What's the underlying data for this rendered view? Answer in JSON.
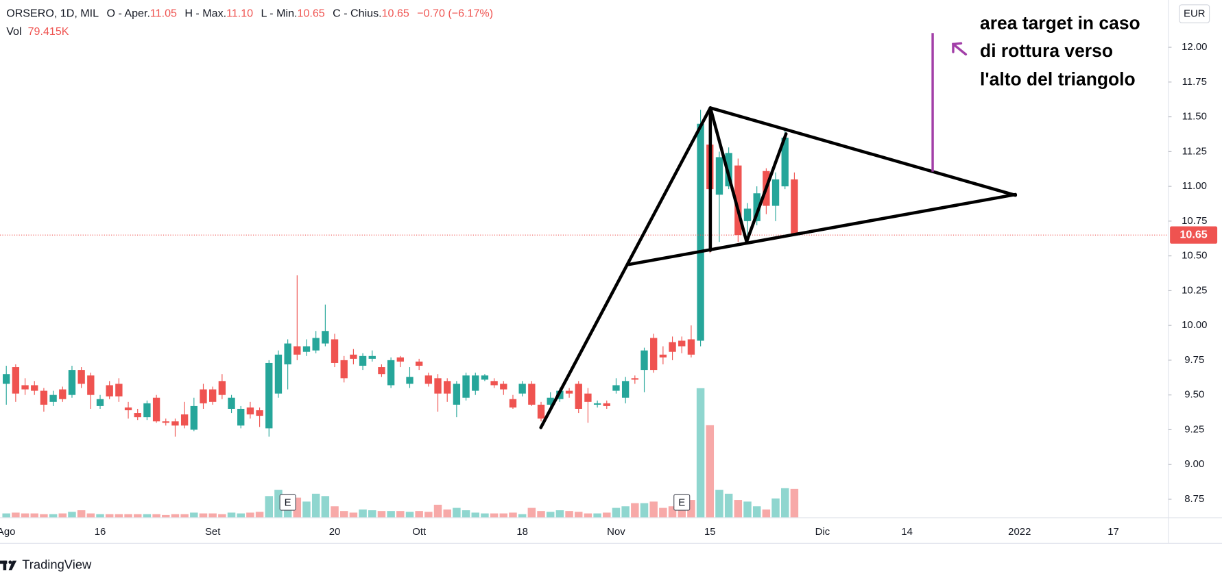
{
  "chart_data": {
    "type": "candlestick",
    "header": {
      "symbol": "ORSERO, 1D, MIL",
      "open_label": "O - Aper.",
      "open": "11.05",
      "high_label": "H - Max.",
      "high": "11.10",
      "low_label": "L - Min.",
      "low": "10.65",
      "close_label": "C - Chius.",
      "close": "10.65",
      "change": "−0.70 (−6.17%)",
      "volume_label": "Vol",
      "volume": "79.415K"
    },
    "currency": "EUR",
    "annotation": [
      "area target in caso",
      "di rottura verso",
      "l'alto del triangolo"
    ],
    "earnings_label": "E",
    "brand": "TradingView",
    "up_color": "#26a69a",
    "down_color": "#ef5350",
    "volume_up_color": "#8fd6cf",
    "volume_down_color": "#f7a9a8",
    "ylim": [
      8.62,
      12.34
    ],
    "yticks": [
      8.75,
      {
        "value": 9,
        "label": "9.00"
      },
      9.25,
      {
        "value": 9.5,
        "label": "9.50"
      },
      9.75,
      {
        "value": 10,
        "label": "10.00"
      },
      10.25,
      {
        "value": 10.5,
        "label": "10.50"
      },
      10.75,
      {
        "value": 11,
        "label": "11.00"
      },
      11.25,
      {
        "value": 11.5,
        "label": "11.50"
      },
      11.75,
      {
        "value": 12,
        "label": "12.00"
      }
    ],
    "last_price": {
      "value": 10.65,
      "label": "10.65"
    },
    "categories": [
      "Ago",
      null,
      null,
      null,
      null,
      null,
      null,
      null,
      null,
      null,
      "16",
      null,
      null,
      null,
      null,
      null,
      null,
      null,
      null,
      null,
      null,
      null,
      "Set",
      null,
      null,
      null,
      null,
      null,
      null,
      null,
      null,
      null,
      null,
      null,
      null,
      "20",
      null,
      null,
      null,
      null,
      null,
      null,
      null,
      null,
      "Ott",
      null,
      null,
      null,
      null,
      null,
      null,
      null,
      null,
      null,
      null,
      "18",
      null,
      null,
      null,
      null,
      null,
      null,
      null,
      null,
      null,
      "Nov",
      null,
      null,
      null,
      null,
      null,
      null,
      null,
      null,
      null,
      "15",
      null,
      null,
      null,
      null,
      null,
      null,
      null,
      null,
      null,
      null,
      null,
      "Dic",
      null,
      null,
      null,
      null,
      null,
      null,
      null,
      null,
      "14",
      null,
      null,
      null,
      null,
      null,
      null,
      null,
      null,
      null,
      null,
      null,
      "2022",
      null,
      null,
      null,
      null,
      null,
      null,
      null,
      null,
      null,
      "17"
    ],
    "open": [
      9.58,
      9.7,
      9.57,
      9.57,
      9.53,
      9.45,
      9.54,
      9.5,
      9.68,
      9.64,
      9.42,
      9.57,
      9.58,
      9.41,
      9.37,
      9.34,
      9.48,
      9.31,
      9.31,
      9.36,
      9.25,
      9.54,
      9.54,
      9.6,
      9.4,
      9.28,
      9.41,
      9.39,
      9.26,
      9.51,
      9.72,
      9.85,
      9.81,
      9.82,
      9.87,
      9.9,
      9.75,
      9.79,
      9.71,
      9.76,
      9.7,
      9.57,
      9.77,
      9.58,
      9.74,
      9.64,
      9.62,
      9.6,
      9.43,
      9.48,
      9.53,
      9.61,
      9.6,
      9.58,
      9.47,
      9.51,
      9.58,
      9.43,
      9.43,
      9.47,
      9.53,
      9.58,
      9.51,
      9.43,
      9.44,
      9.53,
      9.48,
      9.62,
      9.68,
      9.91,
      9.79,
      9.88,
      9.89,
      9.9,
      9.89,
      11.3,
      10.94,
      11.0,
      11.15,
      10.75,
      10.75,
      11.11,
      10.86,
      11.0,
      11.05,
      null,
      null,
      null,
      null,
      null,
      null,
      null,
      null,
      null,
      null,
      null,
      null,
      null,
      null,
      null,
      null,
      null,
      null,
      null,
      null,
      null,
      null,
      null,
      null,
      null,
      null,
      null,
      null,
      null,
      null,
      null,
      null,
      null,
      null
    ],
    "high": [
      9.71,
      9.72,
      9.62,
      9.6,
      9.55,
      9.53,
      9.56,
      9.71,
      9.7,
      9.66,
      9.5,
      9.6,
      9.62,
      9.45,
      9.4,
      9.46,
      9.5,
      9.33,
      9.33,
      9.45,
      9.48,
      9.58,
      9.56,
      9.65,
      9.5,
      9.42,
      9.45,
      9.41,
      9.75,
      9.82,
      9.9,
      10.36,
      9.9,
      9.96,
      10.15,
      9.94,
      9.78,
      9.83,
      9.8,
      9.82,
      9.72,
      9.77,
      9.78,
      9.7,
      9.76,
      9.66,
      9.65,
      9.62,
      9.6,
      9.66,
      9.66,
      9.65,
      9.62,
      9.6,
      9.5,
      9.6,
      9.6,
      9.45,
      9.52,
      9.55,
      9.55,
      9.6,
      9.55,
      9.46,
      9.46,
      9.62,
      9.63,
      9.64,
      9.84,
      9.94,
      9.85,
      9.92,
      9.92,
      10.0,
      11.55,
      11.38,
      11.25,
      11.28,
      11.2,
      10.88,
      11.0,
      11.13,
      11.1,
      11.4,
      11.1,
      null,
      null,
      null,
      null,
      null,
      null,
      null,
      null,
      null,
      null,
      null,
      null,
      null,
      null,
      null,
      null,
      null,
      null,
      null,
      null,
      null,
      null,
      null,
      null,
      null,
      null,
      null,
      null,
      null,
      null,
      null,
      null,
      null,
      null
    ],
    "low": [
      9.43,
      9.45,
      9.5,
      9.5,
      9.38,
      9.42,
      9.45,
      9.48,
      9.55,
      9.4,
      9.4,
      9.47,
      9.45,
      9.33,
      9.32,
      9.32,
      9.3,
      9.28,
      9.2,
      9.26,
      9.24,
      9.4,
      9.43,
      9.47,
      9.37,
      9.26,
      9.33,
      9.27,
      9.2,
      9.48,
      9.54,
      9.75,
      9.78,
      9.8,
      9.85,
      9.7,
      9.59,
      9.72,
      9.68,
      9.74,
      9.63,
      9.55,
      9.7,
      9.55,
      9.68,
      9.56,
      9.38,
      9.45,
      9.34,
      9.46,
      9.5,
      9.6,
      9.55,
      9.5,
      9.4,
      9.49,
      9.42,
      9.31,
      9.4,
      9.45,
      9.48,
      9.37,
      9.3,
      9.41,
      9.4,
      9.51,
      9.44,
      9.58,
      9.52,
      9.66,
      9.72,
      9.75,
      9.8,
      9.77,
      9.85,
      10.52,
      10.6,
      10.98,
      10.6,
      10.62,
      10.72,
      10.8,
      10.75,
      10.98,
      10.65,
      null,
      null,
      null,
      null,
      null,
      null,
      null,
      null,
      null,
      null,
      null,
      null,
      null,
      null,
      null,
      null,
      null,
      null,
      null,
      null,
      null,
      null,
      null,
      null,
      null,
      null,
      null,
      null,
      null,
      null,
      null,
      null,
      null,
      null
    ],
    "close": [
      9.65,
      9.51,
      9.54,
      9.53,
      9.43,
      9.5,
      9.47,
      9.68,
      9.58,
      9.5,
      9.47,
      9.49,
      9.49,
      9.39,
      9.34,
      9.44,
      9.31,
      9.3,
      9.28,
      9.28,
      9.42,
      9.44,
      9.45,
      9.5,
      9.48,
      9.4,
      9.36,
      9.35,
      9.73,
      9.79,
      9.87,
      9.79,
      9.85,
      9.91,
      9.96,
      9.73,
      9.62,
      9.76,
      9.78,
      9.78,
      9.65,
      9.75,
      9.74,
      9.63,
      9.71,
      9.58,
      9.51,
      9.51,
      9.58,
      9.64,
      9.64,
      9.64,
      9.57,
      9.54,
      9.41,
      9.58,
      9.43,
      9.33,
      9.48,
      9.53,
      9.51,
      9.4,
      9.45,
      9.44,
      9.42,
      9.57,
      9.6,
      9.61,
      9.82,
      9.68,
      9.77,
      9.81,
      9.85,
      9.79,
      11.45,
      10.98,
      11.21,
      11.24,
      10.65,
      10.84,
      10.95,
      10.86,
      11.05,
      11.35,
      10.65,
      null,
      null,
      null,
      null,
      null,
      null,
      null,
      null,
      null,
      null,
      null,
      null,
      null,
      null,
      null,
      null,
      null,
      null,
      null,
      null,
      null,
      null,
      null,
      null,
      null,
      null,
      null,
      null,
      null,
      null,
      null,
      null,
      null,
      null
    ],
    "volume": [
      11,
      13.2,
      11,
      11,
      8.8,
      8.8,
      11,
      15.4,
      19.8,
      11,
      8.8,
      8.8,
      8.8,
      8.8,
      8.8,
      8.8,
      8.8,
      6.6,
      8.8,
      8.8,
      13.2,
      11,
      11,
      8.8,
      13.2,
      11,
      13.2,
      15.4,
      59.4,
      77,
      48.4,
      55,
      44,
      66,
      59.4,
      30.8,
      17.6,
      13.2,
      22,
      19.8,
      17.6,
      17.6,
      17.6,
      15.4,
      17.6,
      15.4,
      35.2,
      22,
      26.4,
      19.8,
      13.2,
      11,
      11,
      11,
      13.2,
      8.8,
      26.4,
      17.6,
      15.4,
      19.8,
      17.6,
      15.4,
      11,
      11,
      13.2,
      26.4,
      30.8,
      39.6,
      39.6,
      44,
      26.4,
      30.8,
      44,
      48.4,
      360.8,
      257.4,
      77,
      66,
      48.4,
      44,
      30.8,
      22,
      52.8,
      81.4,
      79.415,
      null,
      null,
      null,
      null,
      null,
      null,
      null,
      null,
      null,
      null,
      null,
      null,
      null,
      null,
      null,
      null,
      null,
      null,
      null,
      null,
      null,
      null,
      null,
      null,
      null,
      null,
      null,
      null,
      null,
      null,
      null,
      null,
      null,
      null
    ]
  }
}
